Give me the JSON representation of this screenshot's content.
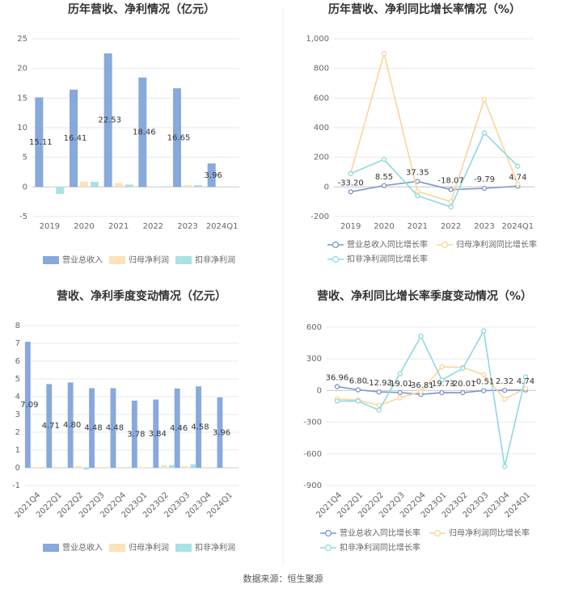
{
  "chart_data": [
    {
      "type": "bar",
      "title": "历年营收、净利情况（亿元）",
      "categories": [
        "2019",
        "2020",
        "2021",
        "2022",
        "2023",
        "2024Q1"
      ],
      "series": [
        {
          "name": "营业总收入",
          "color": "#87a9dc",
          "values": [
            15.11,
            16.41,
            22.53,
            18.46,
            16.65,
            3.96
          ]
        },
        {
          "name": "归母净利润",
          "color": "#fde3b8",
          "values": [
            0.09,
            0.9,
            0.65,
            0.05,
            0.3,
            0.08
          ]
        },
        {
          "name": "扣非净利润",
          "color": "#a8e2e5",
          "values": [
            -1.2,
            0.85,
            0.4,
            -0.1,
            0.3,
            0.05
          ]
        }
      ],
      "ylim": [
        -5,
        25
      ],
      "yticks": [
        -5,
        0,
        5,
        10,
        15,
        20,
        25
      ],
      "grid": true
    },
    {
      "type": "line",
      "title": "历年营收、净利同比增长率情况（%）",
      "categories": [
        "2019",
        "2020",
        "2021",
        "2022",
        "2023",
        "2024Q1"
      ],
      "series": [
        {
          "name": "营业总收入同比增长率",
          "color": "#7b96cf",
          "values": [
            -33.2,
            8.55,
            37.35,
            -18.07,
            -9.79,
            4.74
          ],
          "value_labels": [
            "-33.20",
            "8.55",
            "37.35",
            "-18.07",
            "-9.79",
            "4.74"
          ]
        },
        {
          "name": "归母净利润同比增长率",
          "color": "#fcd49a",
          "values": [
            90,
            900,
            -30,
            -100,
            590,
            20
          ]
        },
        {
          "name": "扣非净利润同比增长率",
          "color": "#8fd9dd",
          "values": [
            90,
            185,
            -60,
            -135,
            365,
            140
          ]
        }
      ],
      "ylim": [
        -200,
        1000
      ],
      "yticks": [
        -200,
        0,
        200,
        400,
        600,
        800,
        {
          "value": 1000,
          "label": "1,000"
        }
      ],
      "grid": true
    },
    {
      "type": "bar",
      "title": "营收、净利季度变动情况（亿元）",
      "categories": [
        "2021Q4",
        "2022Q1",
        "2022Q2",
        "2022Q3",
        "2022Q4",
        "2023Q1",
        "2023Q2",
        "2023Q3",
        "2023Q4",
        "2024Q1"
      ],
      "series": [
        {
          "name": "营业总收入",
          "color": "#87a9dc",
          "values": [
            7.09,
            4.71,
            4.8,
            4.48,
            4.48,
            3.78,
            3.84,
            4.46,
            4.58,
            3.96
          ],
          "value_labels": [
            "7.09",
            "4.71",
            "4.80",
            "4.48",
            "4.48",
            "3.78",
            "3.84",
            "4.46",
            "4.58",
            "3.96"
          ]
        },
        {
          "name": "归母净利润",
          "color": "#fde3b8",
          "values": [
            0.05,
            0.05,
            0.1,
            0.05,
            0.05,
            0.03,
            0.15,
            0.1,
            0.05,
            0.05
          ]
        },
        {
          "name": "扣非净利润",
          "color": "#a8e2e5",
          "values": [
            0.03,
            0.03,
            -0.1,
            0.02,
            0.03,
            0.02,
            0.15,
            0.2,
            0.03,
            0.03
          ]
        }
      ],
      "ylim": [
        -1,
        8
      ],
      "yticks": [
        -1,
        0,
        1,
        2,
        3,
        4,
        5,
        6,
        7,
        8
      ],
      "grid": true
    },
    {
      "type": "line",
      "title": "营收、净利同比增长率季度变动情况（%）",
      "categories": [
        "2021Q4",
        "2022Q1",
        "2022Q2",
        "2022Q3",
        "2022Q4",
        "2023Q1",
        "2023Q2",
        "2023Q3",
        "2023Q4",
        "2024Q1"
      ],
      "series": [
        {
          "name": "营业总收入同比增长率",
          "color": "#7b96cf",
          "values": [
            36.96,
            6.8,
            -12.93,
            -19.01,
            -36.81,
            -19.73,
            -20.01,
            -0.51,
            2.32,
            4.74
          ],
          "value_labels": [
            "36.96",
            "6.80",
            "-12.93",
            "-19.01",
            "-36.81",
            "-19.73",
            "-20.01",
            "-0.51",
            "2.32",
            "4.74"
          ]
        },
        {
          "name": "归母净利润同比增长率",
          "color": "#fcd49a",
          "values": [
            -80,
            -90,
            -140,
            -70,
            -10,
            225,
            220,
            150,
            -80,
            20
          ]
        },
        {
          "name": "扣非净利润同比增长率",
          "color": "#8fd9dd",
          "values": [
            -100,
            -100,
            -185,
            160,
            515,
            100,
            210,
            565,
            -720,
            130
          ]
        }
      ],
      "ylim": [
        -900,
        600
      ],
      "yticks": [
        -900,
        -600,
        -300,
        0,
        300,
        600
      ],
      "grid": true
    }
  ],
  "source": "数据来源：恒生聚源"
}
